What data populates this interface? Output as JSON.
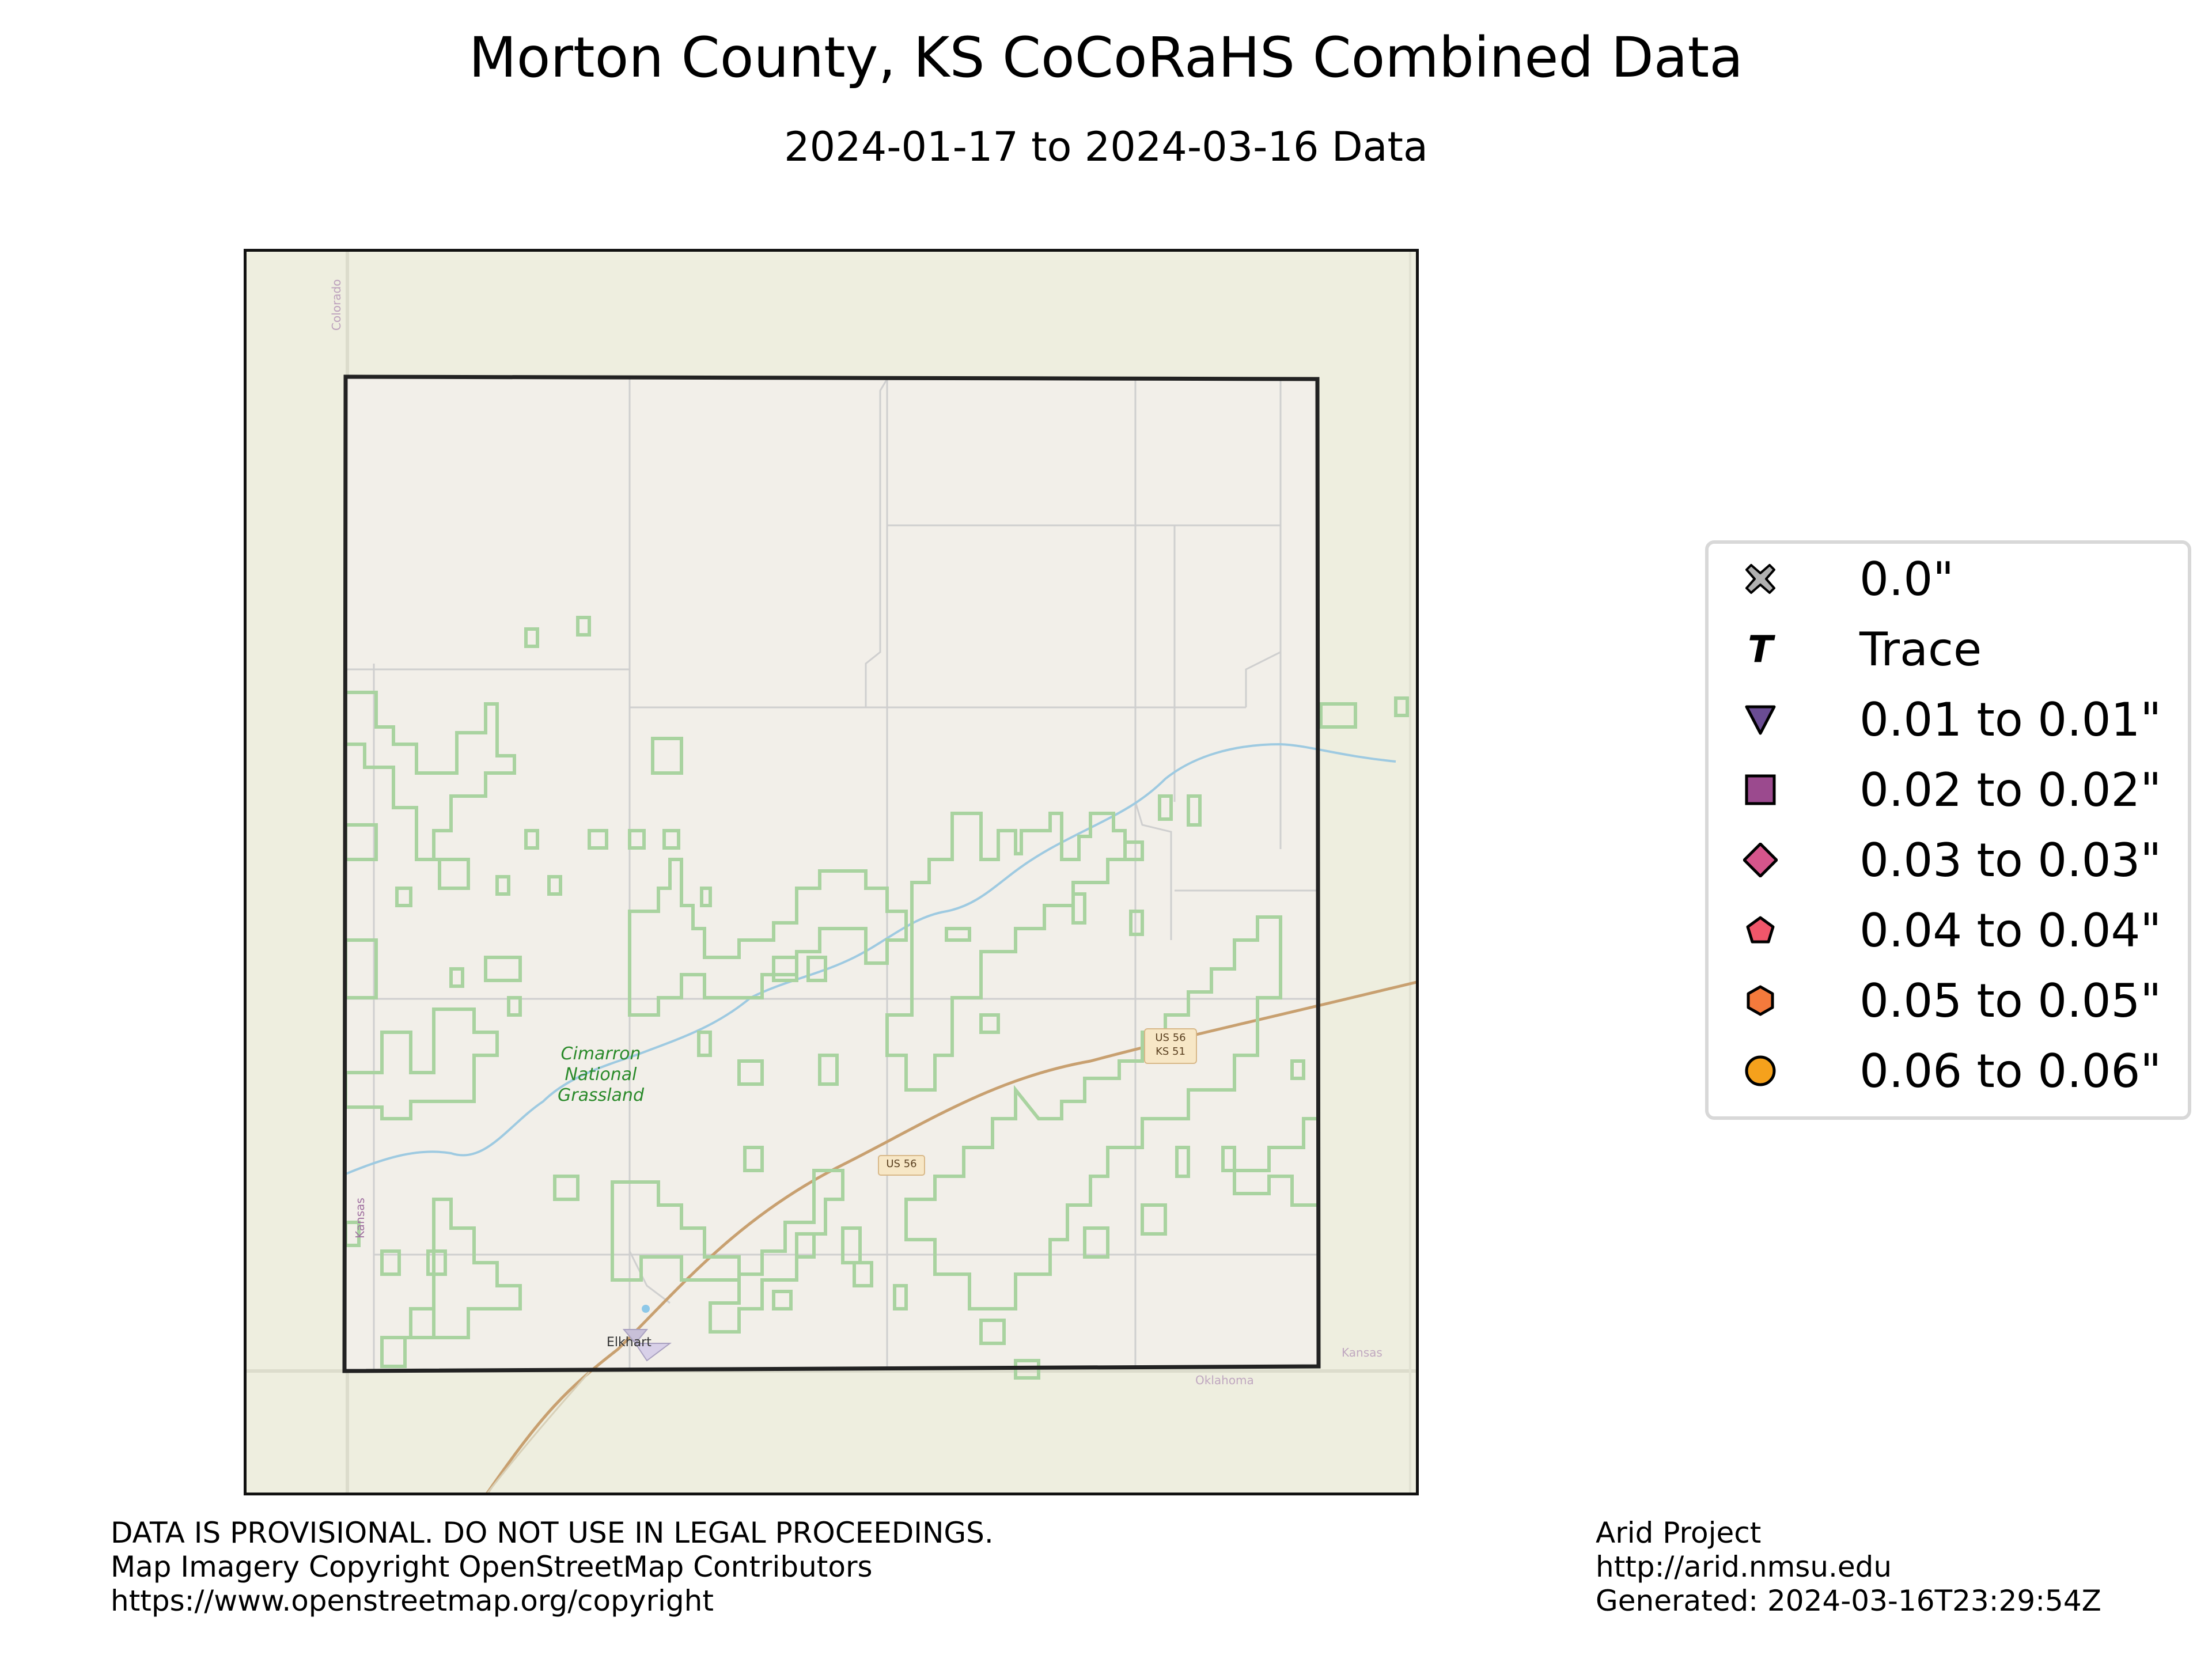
{
  "title": "Morton County, KS CoCoRaHS Combined Data",
  "subtitle": "2024-01-17 to 2024-03-16 Data",
  "map": {
    "labels": {
      "colorado": "Colorado",
      "kansas_west": "Kansas",
      "kansas_east": "Kansas",
      "oklahoma": "Oklahoma",
      "grassland_line1": "Cimarron",
      "grassland_line2": "National",
      "grassland_line3": "Grassland",
      "us56_shield_a": "US 56",
      "us56_ks51_shield_line1": "US 56",
      "us56_ks51_shield_line2": "KS 51",
      "city": "Elkhart"
    },
    "colors": {
      "background_outside": "#eeeedf",
      "county_fill": "#f2efe9",
      "county_border": "#222222",
      "grassland_outline": "#a9d3a0",
      "river": "#9ecae1",
      "road_primary": "#c8a070",
      "road_minor": "#cfcfcf"
    }
  },
  "legend": {
    "items": [
      {
        "label": "0.0\"",
        "icon": "x-marker-icon",
        "color": "#b0b0b0"
      },
      {
        "label": "Trace",
        "icon": "trace-t-icon",
        "color": "#000000"
      },
      {
        "label": "0.01 to 0.01\"",
        "icon": "triangle-down-icon",
        "color": "#6a4c93"
      },
      {
        "label": "0.02 to 0.02\"",
        "icon": "square-icon",
        "color": "#9b4a8e"
      },
      {
        "label": "0.03 to 0.03\"",
        "icon": "diamond-icon",
        "color": "#d6558b"
      },
      {
        "label": "0.04 to 0.04\"",
        "icon": "pentagon-icon",
        "color": "#f0566a"
      },
      {
        "label": "0.05 to 0.05\"",
        "icon": "hexagon-icon",
        "color": "#f47a3c"
      },
      {
        "label": "0.06 to 0.06\"",
        "icon": "circle-icon",
        "color": "#f5a11c"
      }
    ]
  },
  "footer": {
    "left": [
      "DATA IS PROVISIONAL. DO NOT USE IN LEGAL PROCEEDINGS.",
      "Map Imagery Copyright OpenStreetMap Contributors",
      "https://www.openstreetmap.org/copyright"
    ],
    "right": [
      "Arid Project",
      "http://arid.nmsu.edu",
      "Generated: 2024-03-16T23:29:54Z"
    ]
  }
}
